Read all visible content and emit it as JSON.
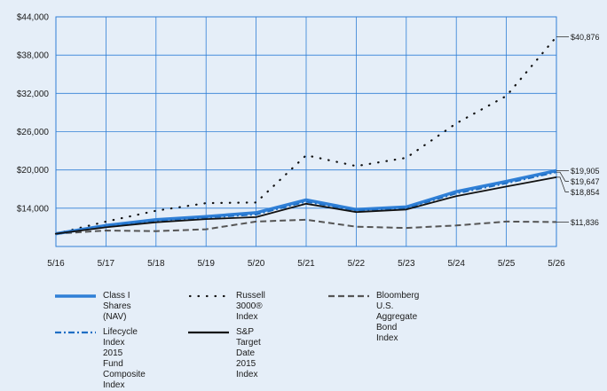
{
  "colors": {
    "background": "#e5eef8",
    "grid": "#2f7fd6",
    "class_i": "#2f7fd6",
    "russell": "#111111",
    "bloomberg": "#555555",
    "lifecycle": "#1f6fc4",
    "sp_target": "#111111"
  },
  "chart_data": {
    "type": "line",
    "x": [
      "5/16",
      "5/17",
      "5/18",
      "5/19",
      "5/20",
      "5/21",
      "5/22",
      "5/23",
      "5/24",
      "5/25",
      "5/26"
    ],
    "y_ticks": [
      "$44,000",
      "$38,000",
      "$32,000",
      "$26,000",
      "$20,000",
      "$14,000"
    ],
    "ylim": [
      8000,
      44000
    ],
    "grid": true,
    "legend_position": "bottom",
    "series": [
      {
        "name": "Class I Shares (NAV)",
        "style": "solid-thick",
        "values": [
          10000,
          11300,
          12200,
          12700,
          13300,
          15300,
          13800,
          14200,
          16600,
          18200,
          19905
        ],
        "end_label": "$19,905"
      },
      {
        "name": "Russell 3000® Index",
        "style": "dotted",
        "values": [
          10000,
          11900,
          13600,
          14800,
          14900,
          22300,
          20600,
          21900,
          27300,
          31600,
          40876
        ],
        "end_label": "$40,876"
      },
      {
        "name": "Bloomberg U.S. Aggregate Bond Index",
        "style": "dashed",
        "values": [
          10000,
          10500,
          10400,
          10700,
          11900,
          12200,
          11100,
          10900,
          11300,
          11900,
          11836
        ],
        "end_label": "$11,836"
      },
      {
        "name": "Lifecycle Index 2015 Fund Composite Index",
        "style": "dash-dot",
        "values": [
          10000,
          11200,
          12000,
          12500,
          13000,
          15000,
          13600,
          14000,
          16300,
          17900,
          19647
        ],
        "end_label": "$19,647"
      },
      {
        "name": "S&P Target Date 2015 Index",
        "style": "solid-black",
        "values": [
          10000,
          11000,
          11800,
          12300,
          12600,
          14700,
          13400,
          13800,
          15900,
          17400,
          18854
        ],
        "end_label": "$18,854"
      }
    ]
  },
  "legend": [
    {
      "label": "Class I Shares (NAV)"
    },
    {
      "label": "Russell 3000® Index"
    },
    {
      "label": "Bloomberg U.S.\nAggregate Bond Index"
    },
    {
      "label": "Lifecycle Index 2015\nFund Composite Index"
    },
    {
      "label": "S&P Target Date 2015\nIndex"
    }
  ]
}
